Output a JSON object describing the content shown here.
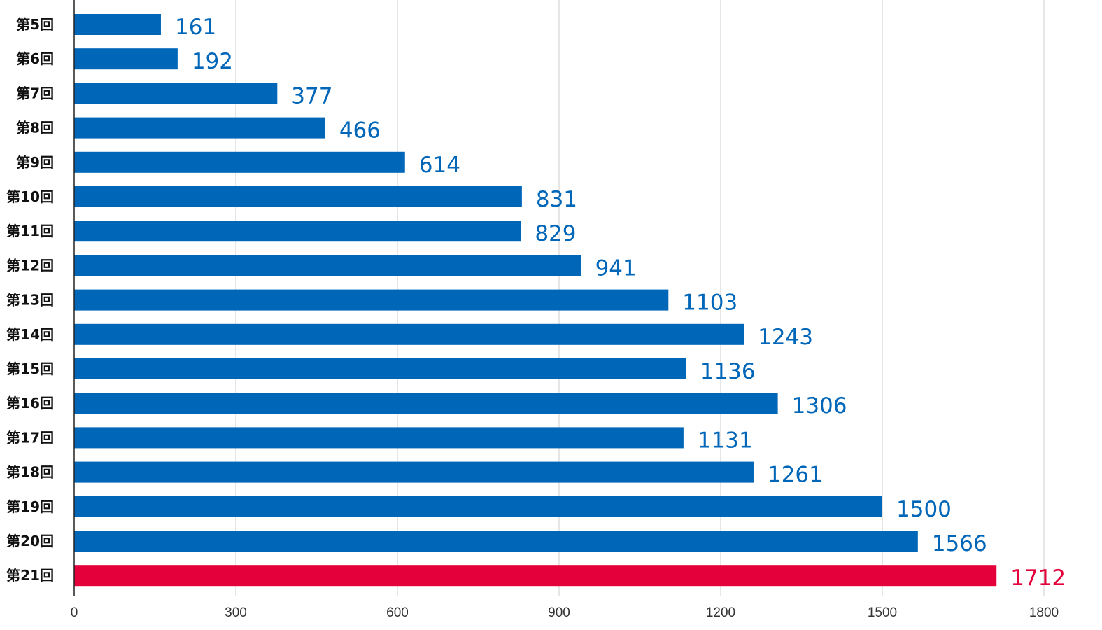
{
  "chart_data": {
    "type": "bar",
    "orientation": "horizontal",
    "categories": [
      "第5回",
      "第6回",
      "第7回",
      "第8回",
      "第9回",
      "第10回",
      "第11回",
      "第12回",
      "第13回",
      "第14回",
      "第15回",
      "第16回",
      "第17回",
      "第18回",
      "第19回",
      "第20回",
      "第21回"
    ],
    "values": [
      161,
      192,
      377,
      466,
      614,
      831,
      829,
      941,
      1103,
      1243,
      1136,
      1306,
      1131,
      1261,
      1500,
      1566,
      1712
    ],
    "xticks": [
      0,
      300,
      600,
      900,
      1200,
      1500,
      1800
    ],
    "xlim": [
      0,
      1800
    ],
    "grid": "vertical",
    "colors": {
      "bar": "#0066b8",
      "highlight_bar": "#e4003a",
      "grid": "#cccccc",
      "axis": "#222222"
    },
    "highlight_index": 16
  }
}
